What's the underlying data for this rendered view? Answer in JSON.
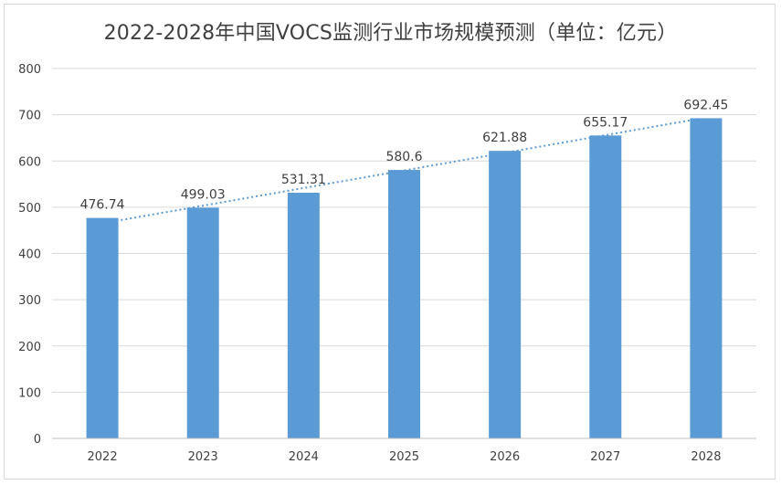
{
  "chart_data": {
    "type": "bar",
    "title": "2022-2028年中国VOCS监测行业市场规模预测（单位：亿元）",
    "xlabel": "",
    "ylabel": "",
    "categories": [
      "2022",
      "2023",
      "2024",
      "2025",
      "2026",
      "2027",
      "2028"
    ],
    "values": [
      476.74,
      499.03,
      531.31,
      580.6,
      621.88,
      655.17,
      692.45
    ],
    "data_labels": [
      "476.74",
      "499.03",
      "531.31",
      "580.6",
      "621.88",
      "655.17",
      "692.45"
    ],
    "ylim": [
      0,
      800
    ],
    "yticks": [
      "0",
      "100",
      "200",
      "300",
      "400",
      "500",
      "600",
      "700",
      "800"
    ],
    "grid": true,
    "trendline": "linear, dotted",
    "colors": {
      "bar": "#5b9bd5",
      "trendline": "#5b9bd5",
      "grid": "#d9d9d9",
      "text": "#404040"
    }
  }
}
